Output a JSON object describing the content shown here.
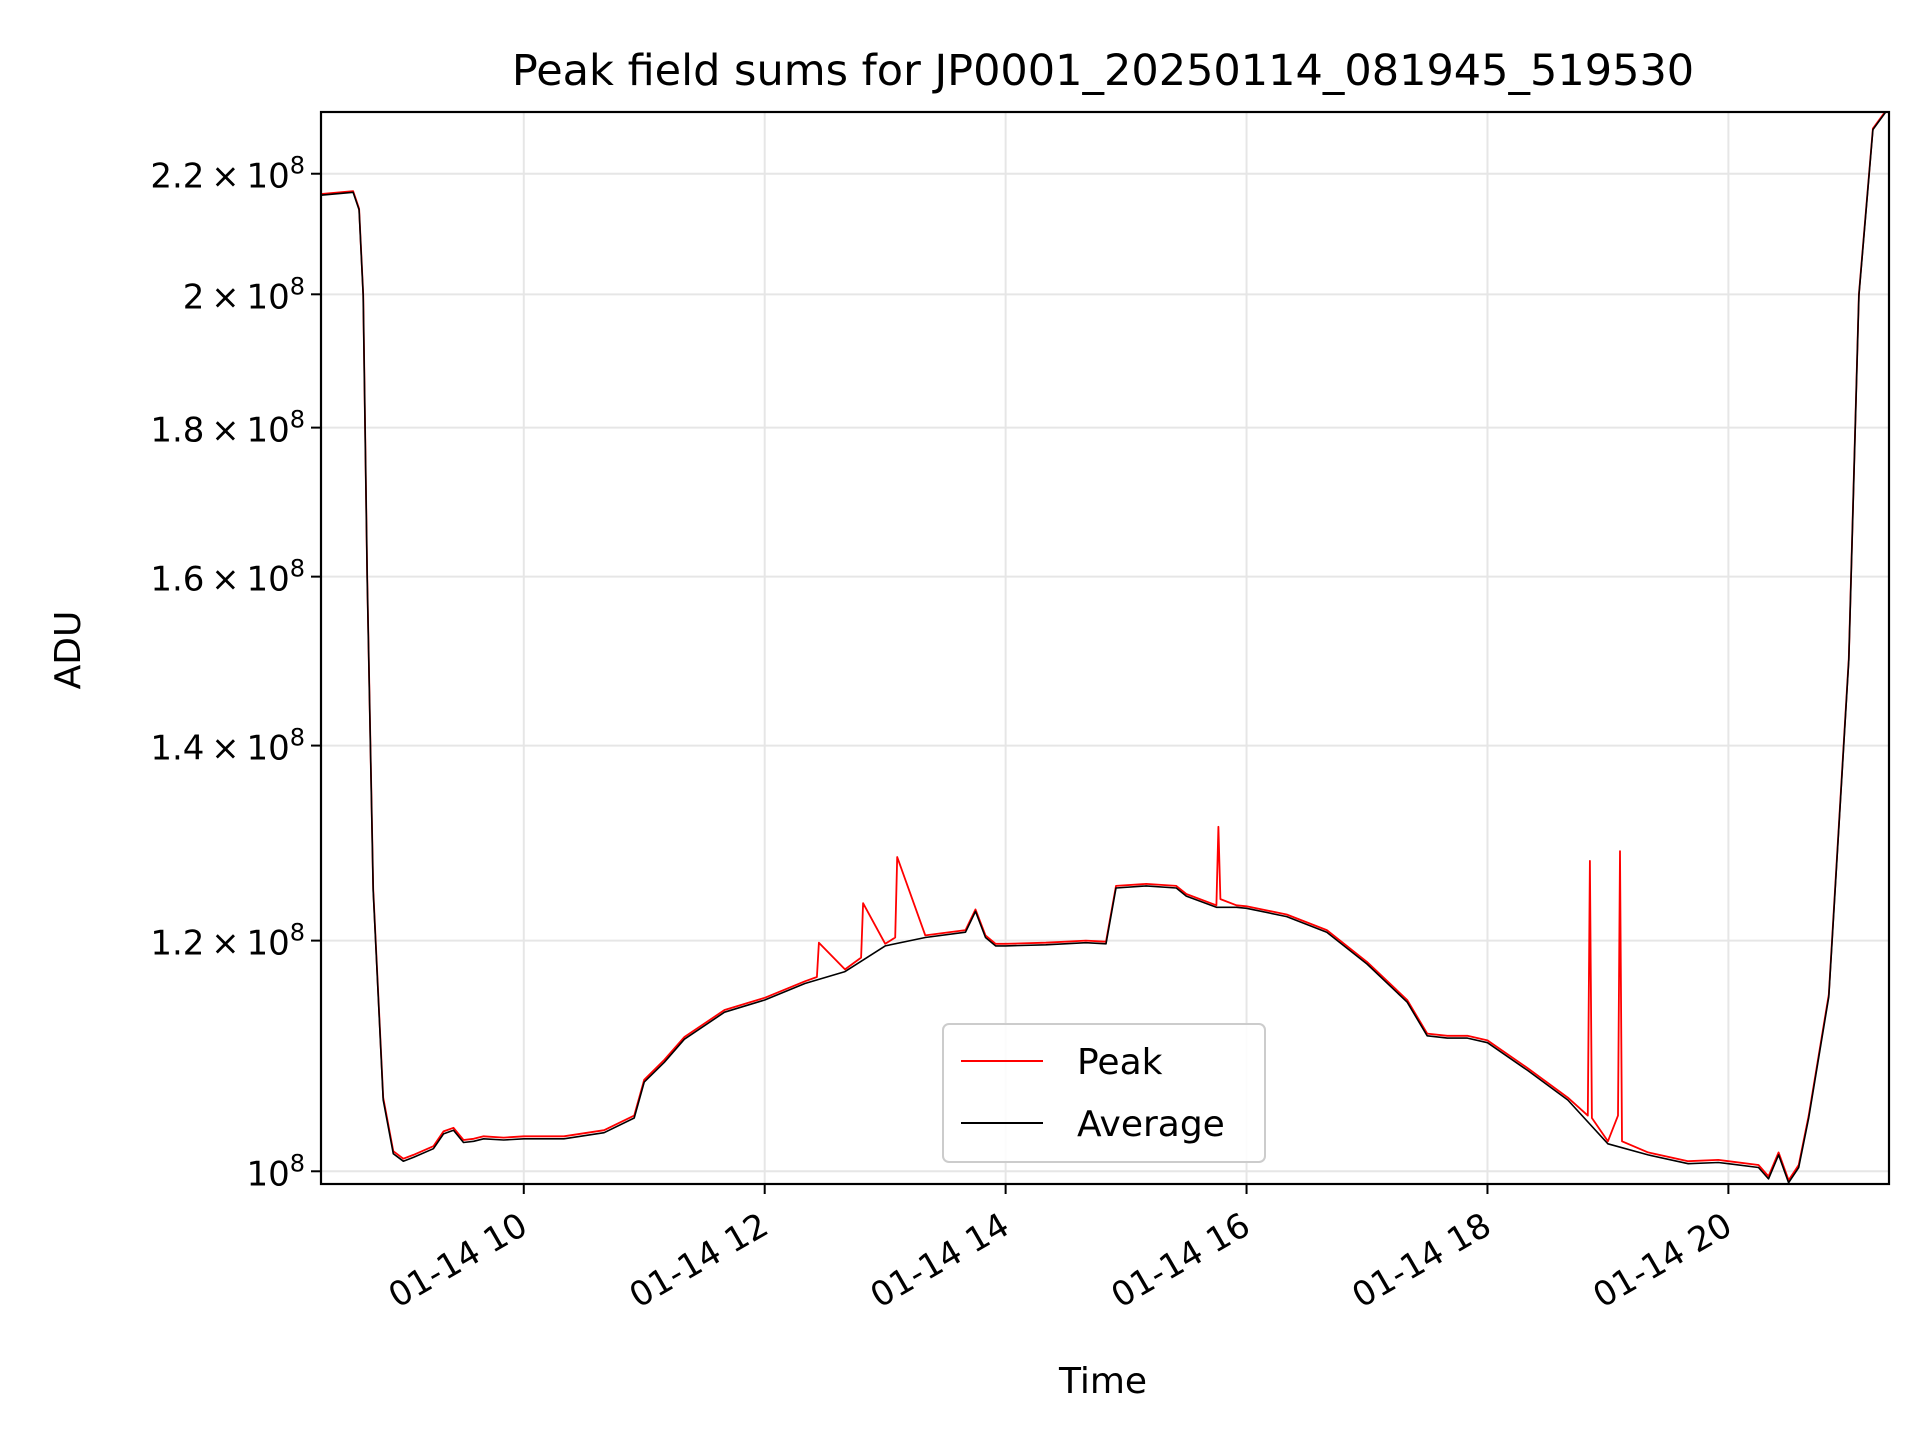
{
  "chart_data": {
    "type": "line",
    "title": "Peak field sums for JP0001_20250114_081945_519530",
    "xlabel": "Time",
    "ylabel": "ADU",
    "x_scale": "time",
    "y_scale": "log",
    "xlim": [
      "2025-01-14 08:19",
      "2025-01-14 21:20"
    ],
    "ylim": [
      99000000,
      231000000
    ],
    "x_ticks": [
      {
        "t": "2025-01-14 10:00",
        "label": "01-14 10"
      },
      {
        "t": "2025-01-14 12:00",
        "label": "01-14 12"
      },
      {
        "t": "2025-01-14 14:00",
        "label": "01-14 14"
      },
      {
        "t": "2025-01-14 16:00",
        "label": "01-14 16"
      },
      {
        "t": "2025-01-14 18:00",
        "label": "01-14 18"
      },
      {
        "t": "2025-01-14 20:00",
        "label": "01-14 20"
      }
    ],
    "y_ticks": [
      {
        "v": 100000000,
        "mant": "",
        "exp": "8"
      },
      {
        "v": 120000000,
        "mant": "1.2",
        "exp": "8"
      },
      {
        "v": 140000000,
        "mant": "1.4",
        "exp": "8"
      },
      {
        "v": 160000000,
        "mant": "1.6",
        "exp": "8"
      },
      {
        "v": 180000000,
        "mant": "1.8",
        "exp": "8"
      },
      {
        "v": 200000000,
        "mant": "2",
        "exp": "8"
      },
      {
        "v": 220000000,
        "mant": "2.2",
        "exp": "8"
      }
    ],
    "grid": true,
    "legend_position": "bottom-center",
    "series": [
      {
        "name": "Peak",
        "color": "#ff0000",
        "x": [
          "08:19",
          "08:35",
          "08:38",
          "08:40",
          "08:42",
          "08:45",
          "08:50",
          "08:55",
          "09:00",
          "09:05",
          "09:15",
          "09:20",
          "09:25",
          "09:30",
          "09:35",
          "09:40",
          "09:50",
          "10:00",
          "10:20",
          "10:40",
          "10:55",
          "11:00",
          "11:10",
          "11:20",
          "11:40",
          "12:00",
          "12:20",
          "12:26",
          "12:27",
          "12:40",
          "12:48",
          "12:49",
          "13:00",
          "13:05",
          "13:06",
          "13:20",
          "13:40",
          "13:45",
          "13:50",
          "13:55",
          "14:00",
          "14:20",
          "14:40",
          "14:50",
          "14:55",
          "15:10",
          "15:25",
          "15:30",
          "15:45",
          "15:46",
          "15:47",
          "15:55",
          "16:00",
          "16:20",
          "16:40",
          "17:00",
          "17:20",
          "17:30",
          "17:40",
          "17:50",
          "18:00",
          "18:20",
          "18:40",
          "18:50",
          "18:51",
          "18:52",
          "19:00",
          "19:05",
          "19:06",
          "19:07",
          "19:20",
          "19:40",
          "19:55",
          "20:00",
          "20:15",
          "20:20",
          "20:25",
          "20:30",
          "20:35",
          "20:40",
          "20:50",
          "21:00",
          "21:05",
          "21:12",
          "21:20"
        ],
        "values": [
          216500000,
          217000000,
          214000000,
          200000000,
          160000000,
          125000000,
          106000000,
          101600000,
          101000000,
          101300000,
          102000000,
          103200000,
          103500000,
          102500000,
          102600000,
          102800000,
          102700000,
          102800000,
          102800000,
          103300000,
          104500000,
          107500000,
          109200000,
          111200000,
          113600000,
          114700000,
          116200000,
          116600000,
          119800000,
          117300000,
          118400000,
          123600000,
          119700000,
          120300000,
          128200000,
          120500000,
          121000000,
          123000000,
          120500000,
          119700000,
          119700000,
          119800000,
          120000000,
          119900000,
          125300000,
          125500000,
          125300000,
          124500000,
          123400000,
          131300000,
          124000000,
          123400000,
          123300000,
          122500000,
          121000000,
          118000000,
          114500000,
          111500000,
          111300000,
          111300000,
          110900000,
          108500000,
          106000000,
          104500000,
          127800000,
          104300000,
          102400000,
          104500000,
          128800000,
          102400000,
          101500000,
          100800000,
          100900000,
          100800000,
          100500000,
          99600000,
          101500000,
          99300000,
          100500000,
          104500000,
          115000000,
          150000000,
          200000000,
          228000000,
          232000000
        ]
      },
      {
        "name": "Average",
        "color": "#000000",
        "x": [
          "08:19",
          "08:35",
          "08:38",
          "08:40",
          "08:42",
          "08:45",
          "08:50",
          "08:55",
          "09:00",
          "09:05",
          "09:15",
          "09:20",
          "09:25",
          "09:30",
          "09:35",
          "09:40",
          "09:50",
          "10:00",
          "10:20",
          "10:40",
          "10:55",
          "11:00",
          "11:10",
          "11:20",
          "11:40",
          "12:00",
          "12:20",
          "12:40",
          "13:00",
          "13:20",
          "13:40",
          "13:45",
          "13:50",
          "13:55",
          "14:00",
          "14:20",
          "14:40",
          "14:50",
          "14:55",
          "15:10",
          "15:25",
          "15:30",
          "15:45",
          "15:55",
          "16:00",
          "16:20",
          "16:40",
          "17:00",
          "17:20",
          "17:30",
          "17:40",
          "17:50",
          "18:00",
          "18:20",
          "18:40",
          "19:00",
          "19:20",
          "19:40",
          "19:55",
          "20:00",
          "20:15",
          "20:20",
          "20:25",
          "20:30",
          "20:35",
          "20:40",
          "20:50",
          "21:00",
          "21:05",
          "21:12",
          "21:20"
        ],
        "values": [
          216300000,
          216800000,
          213800000,
          199800000,
          159800000,
          124800000,
          105800000,
          101400000,
          100800000,
          101100000,
          101800000,
          103000000,
          103300000,
          102300000,
          102400000,
          102600000,
          102500000,
          102600000,
          102600000,
          103100000,
          104300000,
          107300000,
          109000000,
          111000000,
          113400000,
          114500000,
          116000000,
          117100000,
          119500000,
          120300000,
          120800000,
          122800000,
          120300000,
          119500000,
          119500000,
          119600000,
          119800000,
          119700000,
          125100000,
          125300000,
          125100000,
          124300000,
          123200000,
          123200000,
          123100000,
          122300000,
          120800000,
          117800000,
          114300000,
          111300000,
          111100000,
          111100000,
          110700000,
          108300000,
          105800000,
          102200000,
          101300000,
          100600000,
          100700000,
          100600000,
          100300000,
          99400000,
          101300000,
          99100000,
          100300000,
          104300000,
          114800000,
          149800000,
          199800000,
          227800000,
          231800000
        ]
      }
    ]
  }
}
